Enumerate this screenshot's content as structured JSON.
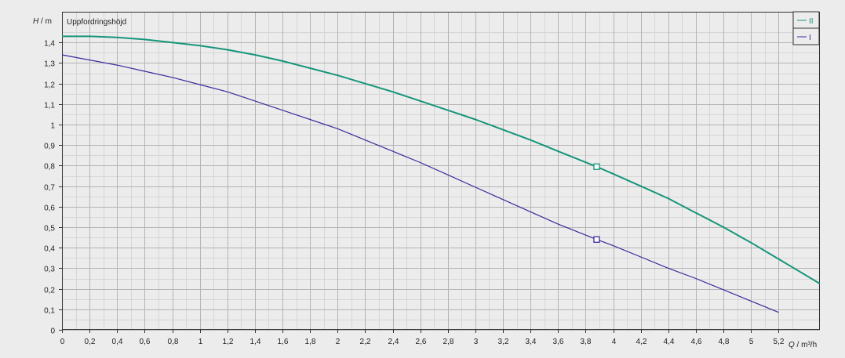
{
  "chart_data": {
    "type": "line",
    "title": "Uppfordringshöjd",
    "y_axis": {
      "var": "H",
      "sep": " / ",
      "unit": "m"
    },
    "x_axis": {
      "var": "Q",
      "sep": " / ",
      "unit": "m³/h"
    },
    "xlim": [
      0,
      5.5
    ],
    "ylim": [
      0,
      1.55
    ],
    "x_ticks": [
      "0",
      "0,2",
      "0,4",
      "0,6",
      "0,8",
      "1",
      "1,2",
      "1,4",
      "1,6",
      "1,8",
      "2",
      "2,2",
      "2,4",
      "2,6",
      "2,8",
      "3",
      "3,2",
      "3,4",
      "3,6",
      "3,8",
      "4",
      "4,2",
      "4,4",
      "4,6",
      "4,8",
      "5",
      "5,2"
    ],
    "x_tick_values": [
      0,
      0.2,
      0.4,
      0.6,
      0.8,
      1,
      1.2,
      1.4,
      1.6,
      1.8,
      2,
      2.2,
      2.4,
      2.6,
      2.8,
      3,
      3.2,
      3.4,
      3.6,
      3.8,
      4,
      4.2,
      4.4,
      4.6,
      4.8,
      5,
      5.2
    ],
    "y_ticks": [
      "0",
      "0,1",
      "0,2",
      "0,3",
      "0,4",
      "0,5",
      "0,6",
      "0,7",
      "0,8",
      "0,9",
      "1",
      "1,1",
      "1,2",
      "1,3",
      "1,4"
    ],
    "y_tick_values": [
      0,
      0.1,
      0.2,
      0.3,
      0.4,
      0.5,
      0.6,
      0.7,
      0.8,
      0.9,
      1.0,
      1.1,
      1.2,
      1.3,
      1.4
    ],
    "grid": true,
    "minor_grid": true,
    "legend_position": "top-right",
    "series": [
      {
        "name": "II",
        "color": "#16957a",
        "points": [
          [
            0,
            1.43
          ],
          [
            0.2,
            1.43
          ],
          [
            0.4,
            1.425
          ],
          [
            0.6,
            1.415
          ],
          [
            0.8,
            1.4
          ],
          [
            1.0,
            1.385
          ],
          [
            1.2,
            1.365
          ],
          [
            1.4,
            1.34
          ],
          [
            1.6,
            1.31
          ],
          [
            1.8,
            1.275
          ],
          [
            2.0,
            1.24
          ],
          [
            2.2,
            1.2
          ],
          [
            2.4,
            1.16
          ],
          [
            2.6,
            1.115
          ],
          [
            2.8,
            1.07
          ],
          [
            3.0,
            1.025
          ],
          [
            3.2,
            0.975
          ],
          [
            3.4,
            0.925
          ],
          [
            3.6,
            0.87
          ],
          [
            3.88,
            0.795
          ],
          [
            4.0,
            0.76
          ],
          [
            4.2,
            0.7
          ],
          [
            4.4,
            0.64
          ],
          [
            4.6,
            0.57
          ],
          [
            4.8,
            0.5
          ],
          [
            5.0,
            0.425
          ],
          [
            5.2,
            0.345
          ],
          [
            5.5,
            0.225
          ]
        ],
        "marker": [
          3.88,
          0.795
        ]
      },
      {
        "name": "I",
        "color": "#3b2a9c",
        "points": [
          [
            0,
            1.34
          ],
          [
            0.2,
            1.315
          ],
          [
            0.4,
            1.29
          ],
          [
            0.6,
            1.26
          ],
          [
            0.8,
            1.23
          ],
          [
            1.0,
            1.195
          ],
          [
            1.2,
            1.16
          ],
          [
            1.4,
            1.115
          ],
          [
            1.6,
            1.07
          ],
          [
            1.8,
            1.025
          ],
          [
            2.0,
            0.98
          ],
          [
            2.2,
            0.925
          ],
          [
            2.4,
            0.87
          ],
          [
            2.6,
            0.815
          ],
          [
            2.8,
            0.755
          ],
          [
            3.0,
            0.695
          ],
          [
            3.2,
            0.635
          ],
          [
            3.4,
            0.575
          ],
          [
            3.6,
            0.515
          ],
          [
            3.88,
            0.44
          ],
          [
            4.0,
            0.41
          ],
          [
            4.2,
            0.355
          ],
          [
            4.4,
            0.3
          ],
          [
            4.6,
            0.25
          ],
          [
            4.8,
            0.195
          ],
          [
            5.0,
            0.14
          ],
          [
            5.2,
            0.085
          ]
        ],
        "marker": [
          3.88,
          0.44
        ]
      }
    ]
  }
}
